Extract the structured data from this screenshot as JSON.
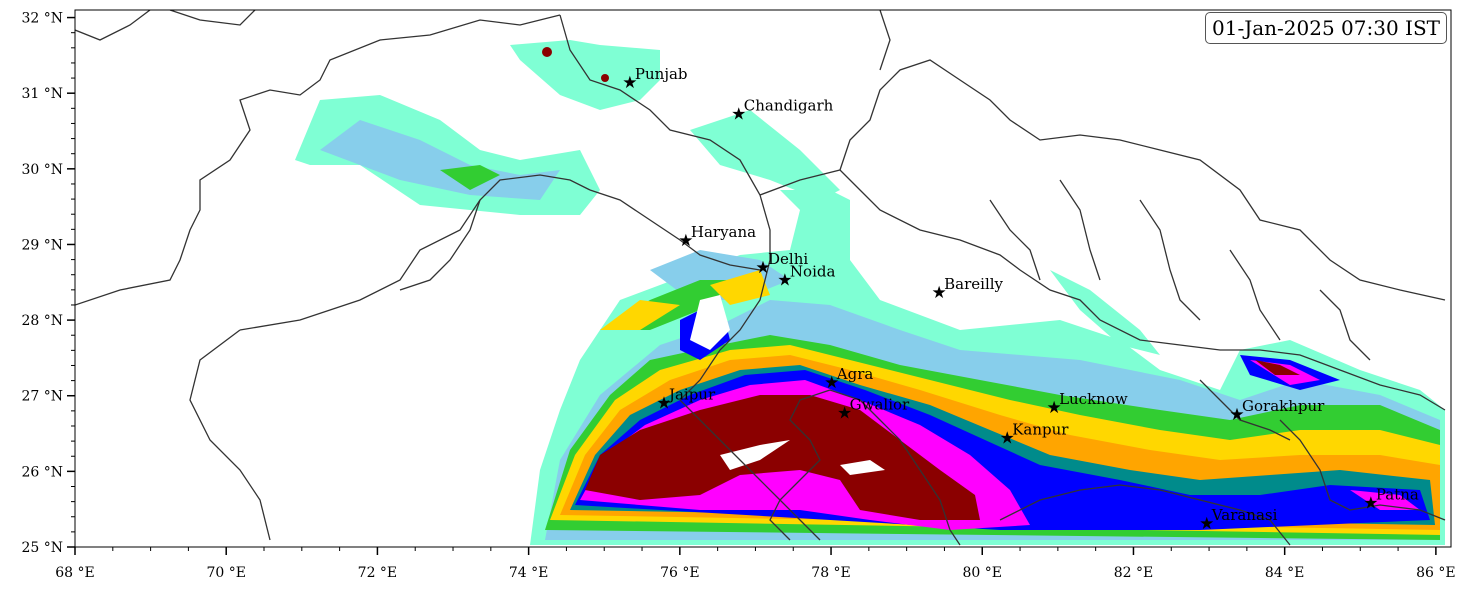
{
  "timestamp": "01-Jan-2025 07:30 IST",
  "axes": {
    "lon_ticks": [
      {
        "value": 68,
        "label": "68 °E"
      },
      {
        "value": 70,
        "label": "70 °E"
      },
      {
        "value": 72,
        "label": "72 °E"
      },
      {
        "value": 74,
        "label": "74 °E"
      },
      {
        "value": 76,
        "label": "76 °E"
      },
      {
        "value": 78,
        "label": "78 °E"
      },
      {
        "value": 80,
        "label": "80 °E"
      },
      {
        "value": 82,
        "label": "82 °E"
      },
      {
        "value": 84,
        "label": "84 °E"
      },
      {
        "value": 86,
        "label": "86 °E"
      }
    ],
    "lat_ticks": [
      {
        "value": 25,
        "label": "25 °N"
      },
      {
        "value": 26,
        "label": "26 °N"
      },
      {
        "value": 27,
        "label": "27 °N"
      },
      {
        "value": 28,
        "label": "28 °N"
      },
      {
        "value": 29,
        "label": "29 °N"
      },
      {
        "value": 30,
        "label": "30 °N"
      },
      {
        "value": 31,
        "label": "31 °N"
      },
      {
        "value": 32,
        "label": "32 °N"
      }
    ],
    "lon_range": [
      68,
      86.2
    ],
    "lat_range": [
      25,
      32.1
    ]
  },
  "cities": [
    {
      "name": "Punjab",
      "lon": 75.34,
      "lat": 31.15
    },
    {
      "name": "Chandigarh",
      "lon": 76.78,
      "lat": 30.73
    },
    {
      "name": "Haryana",
      "lon": 76.08,
      "lat": 29.06
    },
    {
      "name": "Delhi",
      "lon": 77.1,
      "lat": 28.7
    },
    {
      "name": "Noida",
      "lon": 77.39,
      "lat": 28.54
    },
    {
      "name": "Bareilly",
      "lon": 79.43,
      "lat": 28.37
    },
    {
      "name": "Agra",
      "lon": 78.01,
      "lat": 27.18
    },
    {
      "name": "Jaipur",
      "lon": 75.79,
      "lat": 26.91
    },
    {
      "name": "Gwalior",
      "lon": 78.18,
      "lat": 26.78
    },
    {
      "name": "Lucknow",
      "lon": 80.95,
      "lat": 26.85
    },
    {
      "name": "Kanpur",
      "lon": 80.33,
      "lat": 26.45
    },
    {
      "name": "Gorakhpur",
      "lon": 83.37,
      "lat": 26.76
    },
    {
      "name": "Varanasi",
      "lon": 82.97,
      "lat": 25.32
    },
    {
      "name": "Patna",
      "lon": 85.14,
      "lat": 25.59
    }
  ],
  "colors": {
    "level1": "#7fffd4",
    "level2": "#87ceeb",
    "level3": "#32cd32",
    "level4": "#ffd700",
    "level5": "#ffa500",
    "level6": "#008b8b",
    "level7": "#0000ff",
    "level8": "#ff00ff",
    "level9": "#8b0000",
    "boundary": "#333333"
  }
}
